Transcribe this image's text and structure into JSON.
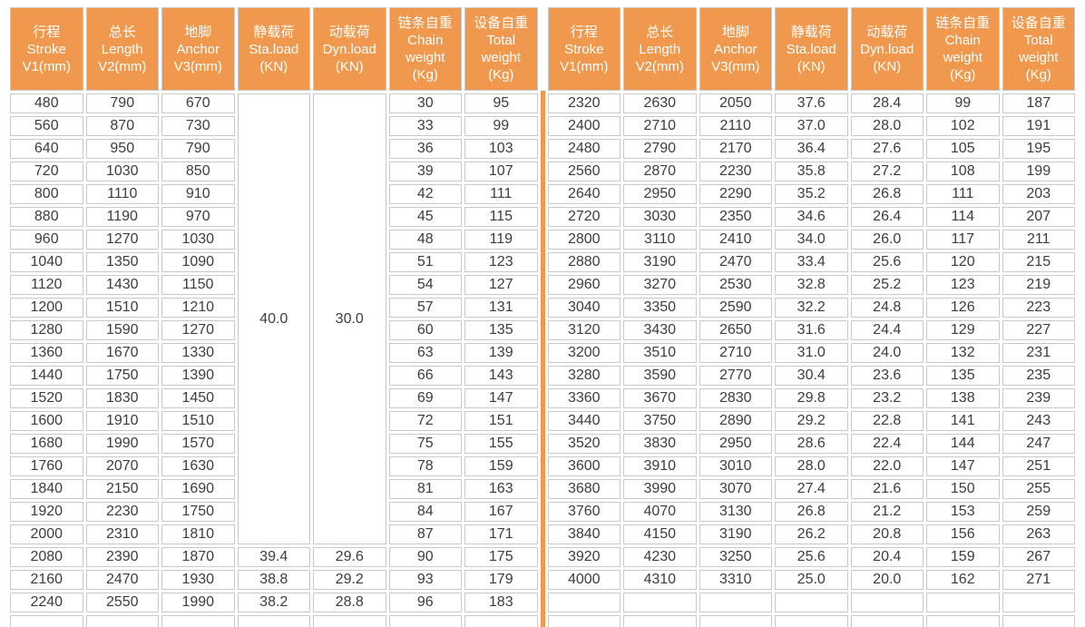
{
  "colors": {
    "header_bg": "#F0994E",
    "header_text": "#FFFFFF",
    "grid_border": "#C9C9C9",
    "cell_text": "#3C3C3C",
    "divider": "#F2964A",
    "page_bg": "#FFFFFF"
  },
  "table": {
    "columns": [
      {
        "key": "stroke",
        "lines": [
          "行程",
          "Stroke",
          "V1(mm)"
        ]
      },
      {
        "key": "length",
        "lines": [
          "总长",
          "Length",
          "V2(mm)"
        ]
      },
      {
        "key": "anchor",
        "lines": [
          "地脚",
          "Anchor",
          "V3(mm)"
        ]
      },
      {
        "key": "static-load",
        "lines": [
          "静载荷",
          "Sta.load",
          "(KN)"
        ]
      },
      {
        "key": "dynamic-load",
        "lines": [
          "动载荷",
          "Dyn.load",
          "(KN)"
        ]
      },
      {
        "key": "chain-weight",
        "lines": [
          "链条自重",
          "Chain",
          "weight",
          "(Kg)"
        ]
      },
      {
        "key": "total-weight",
        "lines": [
          "设备自重",
          "Total",
          "weight",
          "(Kg)"
        ]
      }
    ],
    "left_rows": [
      {
        "c": [
          "480",
          "790",
          "670",
          {
            "v": "40.0",
            "rs": 20
          },
          {
            "v": "30.0",
            "rs": 20
          },
          "30",
          "95"
        ]
      },
      {
        "c": [
          "560",
          "870",
          "730",
          "33",
          "99"
        ]
      },
      {
        "c": [
          "640",
          "950",
          "790",
          "36",
          "103"
        ]
      },
      {
        "c": [
          "720",
          "1030",
          "850",
          "39",
          "107"
        ]
      },
      {
        "c": [
          "800",
          "1110",
          "910",
          "42",
          "111"
        ]
      },
      {
        "c": [
          "880",
          "1190",
          "970",
          "45",
          "115"
        ]
      },
      {
        "c": [
          "960",
          "1270",
          "1030",
          "48",
          "119"
        ]
      },
      {
        "c": [
          "1040",
          "1350",
          "1090",
          "51",
          "123"
        ]
      },
      {
        "c": [
          "1120",
          "1430",
          "1150",
          "54",
          "127"
        ]
      },
      {
        "c": [
          "1200",
          "1510",
          "1210",
          "57",
          "131"
        ]
      },
      {
        "c": [
          "1280",
          "1590",
          "1270",
          "60",
          "135"
        ]
      },
      {
        "c": [
          "1360",
          "1670",
          "1330",
          "63",
          "139"
        ]
      },
      {
        "c": [
          "1440",
          "1750",
          "1390",
          "66",
          "143"
        ]
      },
      {
        "c": [
          "1520",
          "1830",
          "1450",
          "69",
          "147"
        ]
      },
      {
        "c": [
          "1600",
          "1910",
          "1510",
          "72",
          "151"
        ]
      },
      {
        "c": [
          "1680",
          "1990",
          "1570",
          "75",
          "155"
        ]
      },
      {
        "c": [
          "1760",
          "2070",
          "1630",
          "78",
          "159"
        ]
      },
      {
        "c": [
          "1840",
          "2150",
          "1690",
          "81",
          "163"
        ]
      },
      {
        "c": [
          "1920",
          "2230",
          "1750",
          "84",
          "167"
        ]
      },
      {
        "c": [
          "2000",
          "2310",
          "1810",
          "87",
          "171"
        ]
      },
      {
        "c": [
          "2080",
          "2390",
          "1870",
          "39.4",
          "29.6",
          "90",
          "175"
        ]
      },
      {
        "c": [
          "2160",
          "2470",
          "1930",
          "38.8",
          "29.2",
          "93",
          "179"
        ]
      },
      {
        "c": [
          "2240",
          "2550",
          "1990",
          "38.2",
          "28.8",
          "96",
          "183"
        ]
      },
      {
        "c": [
          "",
          "",
          "",
          "",
          "",
          "",
          ""
        ]
      }
    ],
    "right_rows": [
      {
        "c": [
          "2320",
          "2630",
          "2050",
          "37.6",
          "28.4",
          "99",
          "187"
        ]
      },
      {
        "c": [
          "2400",
          "2710",
          "2110",
          "37.0",
          "28.0",
          "102",
          "191"
        ]
      },
      {
        "c": [
          "2480",
          "2790",
          "2170",
          "36.4",
          "27.6",
          "105",
          "195"
        ]
      },
      {
        "c": [
          "2560",
          "2870",
          "2230",
          "35.8",
          "27.2",
          "108",
          "199"
        ]
      },
      {
        "c": [
          "2640",
          "2950",
          "2290",
          "35.2",
          "26.8",
          "111",
          "203"
        ]
      },
      {
        "c": [
          "2720",
          "3030",
          "2350",
          "34.6",
          "26.4",
          "114",
          "207"
        ]
      },
      {
        "c": [
          "2800",
          "3110",
          "2410",
          "34.0",
          "26.0",
          "117",
          "211"
        ]
      },
      {
        "c": [
          "2880",
          "3190",
          "2470",
          "33.4",
          "25.6",
          "120",
          "215"
        ]
      },
      {
        "c": [
          "2960",
          "3270",
          "2530",
          "32.8",
          "25.2",
          "123",
          "219"
        ]
      },
      {
        "c": [
          "3040",
          "3350",
          "2590",
          "32.2",
          "24.8",
          "126",
          "223"
        ]
      },
      {
        "c": [
          "3120",
          "3430",
          "2650",
          "31.6",
          "24.4",
          "129",
          "227"
        ]
      },
      {
        "c": [
          "3200",
          "3510",
          "2710",
          "31.0",
          "24.0",
          "132",
          "231"
        ]
      },
      {
        "c": [
          "3280",
          "3590",
          "2770",
          "30.4",
          "23.6",
          "135",
          "235"
        ]
      },
      {
        "c": [
          "3360",
          "3670",
          "2830",
          "29.8",
          "23.2",
          "138",
          "239"
        ]
      },
      {
        "c": [
          "3440",
          "3750",
          "2890",
          "29.2",
          "22.8",
          "141",
          "243"
        ]
      },
      {
        "c": [
          "3520",
          "3830",
          "2950",
          "28.6",
          "22.4",
          "144",
          "247"
        ]
      },
      {
        "c": [
          "3600",
          "3910",
          "3010",
          "28.0",
          "22.0",
          "147",
          "251"
        ]
      },
      {
        "c": [
          "3680",
          "3990",
          "3070",
          "27.4",
          "21.6",
          "150",
          "255"
        ]
      },
      {
        "c": [
          "3760",
          "4070",
          "3130",
          "26.8",
          "21.2",
          "153",
          "259"
        ]
      },
      {
        "c": [
          "3840",
          "4150",
          "3190",
          "26.2",
          "20.8",
          "156",
          "263"
        ]
      },
      {
        "c": [
          "3920",
          "4230",
          "3250",
          "25.6",
          "20.4",
          "159",
          "267"
        ]
      },
      {
        "c": [
          "4000",
          "4310",
          "3310",
          "25.0",
          "20.0",
          "162",
          "271"
        ]
      },
      {
        "c": [
          "",
          "",
          "",
          "",
          "",
          "",
          ""
        ]
      },
      {
        "c": [
          "",
          "",
          "",
          "",
          "",
          "",
          ""
        ]
      }
    ]
  }
}
